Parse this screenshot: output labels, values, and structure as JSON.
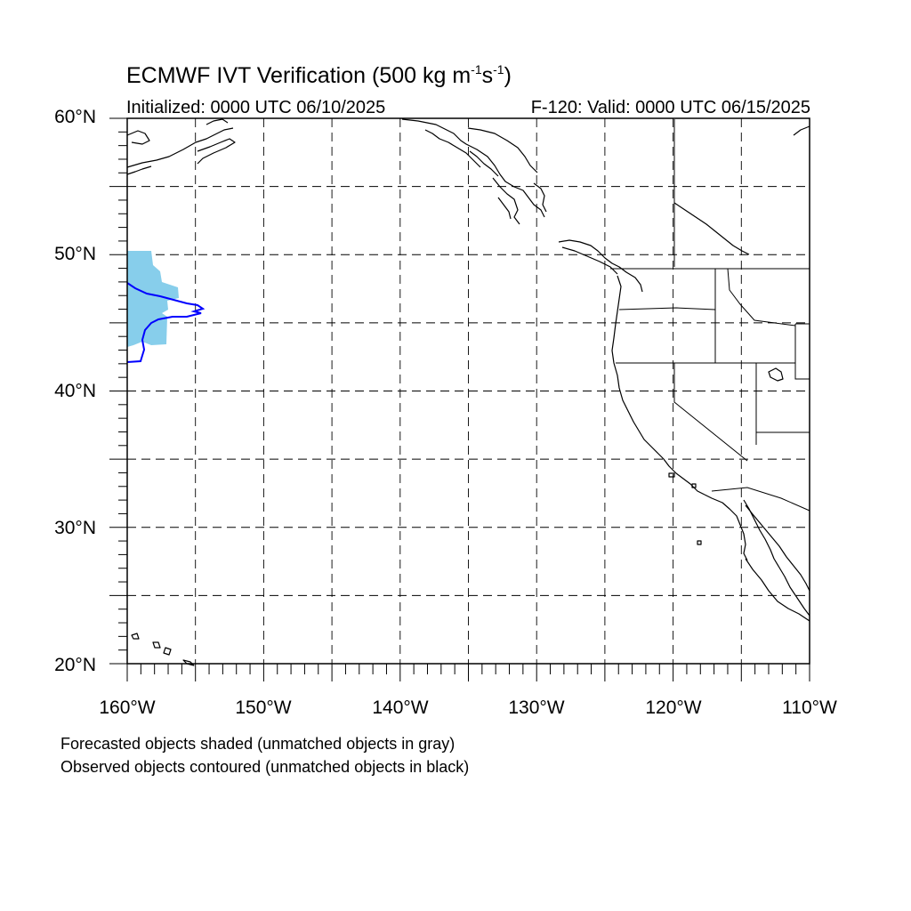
{
  "title": {
    "main": "ECMWF IVT Verification (500 kg m",
    "exp1": "-1",
    "mid": "s",
    "exp2": "-1",
    "close": ")"
  },
  "subtitle": {
    "initialized": "Initialized: 0000 UTC 06/10/2025",
    "valid": "F-120: Valid: 0000 UTC 06/15/2025"
  },
  "map": {
    "projection": "cylindrical-equidistant",
    "lon_range": [
      -160,
      -110
    ],
    "lat_range": [
      20,
      60
    ],
    "gridlines": "dashed every 5 degrees",
    "lat_labels": [
      "60°N",
      "50°N",
      "40°N",
      "30°N",
      "20°N"
    ],
    "lon_labels": [
      "160°W",
      "150°W",
      "140°W",
      "130°W",
      "120°W",
      "110°W"
    ],
    "forecast_object_color": "#87ceeb",
    "observed_contour_color": "#0000ff",
    "coastline_color": "#000000"
  },
  "legend": {
    "line1": "Forecasted objects shaded (unmatched objects in gray)",
    "line2": "Observed objects contoured (unmatched objects in black)"
  }
}
